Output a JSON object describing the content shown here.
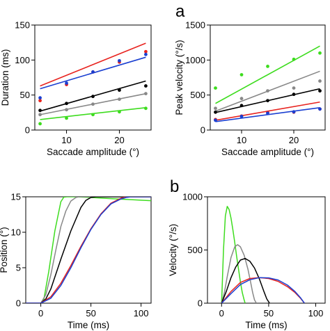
{
  "panel_labels": {
    "a": "a",
    "b": "b"
  },
  "series_colors": {
    "red": "#e8231f",
    "blue": "#1a3fd1",
    "black": "#000000",
    "gray": "#888888",
    "green": "#3ddc1e"
  },
  "chart_data": [
    {
      "id": "duration",
      "type": "scatter",
      "xlabel": "Saccade amplitude (°)",
      "ylabel": "Duration (ms)",
      "xlim": [
        4,
        26
      ],
      "ylim": [
        0,
        150
      ],
      "xticks": [
        10,
        20
      ],
      "yticks": [
        0,
        50,
        100,
        150
      ],
      "grid": false,
      "series": [
        {
          "color": "red",
          "points": [
            [
              5,
              42
            ],
            [
              10,
              65
            ],
            [
              15,
              83
            ],
            [
              20,
              97
            ],
            [
              25,
              112
            ]
          ],
          "fit": [
            [
              5,
              63
            ],
            [
              25,
              124
            ]
          ]
        },
        {
          "color": "blue",
          "points": [
            [
              5,
              46
            ],
            [
              10,
              67
            ],
            [
              15,
              83
            ],
            [
              20,
              99
            ],
            [
              25,
              108
            ]
          ],
          "fit": [
            [
              5,
              59
            ],
            [
              25,
              104
            ]
          ]
        },
        {
          "color": "black",
          "points": [
            [
              5,
              28
            ],
            [
              10,
              38
            ],
            [
              15,
              48
            ],
            [
              20,
              57
            ],
            [
              25,
              63
            ]
          ],
          "fit": [
            [
              5,
              27
            ],
            [
              25,
              70
            ]
          ]
        },
        {
          "color": "gray",
          "points": [
            [
              5,
              22
            ],
            [
              10,
              29
            ],
            [
              15,
              37
            ],
            [
              20,
              44
            ],
            [
              25,
              52
            ]
          ],
          "fit": [
            [
              5,
              22
            ],
            [
              25,
              52
            ]
          ]
        },
        {
          "color": "green",
          "points": [
            [
              5,
              9
            ],
            [
              10,
              17
            ],
            [
              15,
              22
            ],
            [
              20,
              26
            ],
            [
              25,
              31
            ]
          ],
          "fit": [
            [
              5,
              15
            ],
            [
              25,
              32
            ]
          ]
        }
      ]
    },
    {
      "id": "peak_velocity",
      "type": "scatter",
      "xlabel": "Saccade amplitude (°)",
      "ylabel": "Peak velocity (°/s)",
      "xlim": [
        4,
        26
      ],
      "ylim": [
        0,
        1500
      ],
      "xticks": [
        10,
        20
      ],
      "yticks": [
        0,
        500,
        1000,
        1500
      ],
      "grid": false,
      "series": [
        {
          "color": "green",
          "points": [
            [
              5,
              600
            ],
            [
              10,
              790
            ],
            [
              15,
              910
            ],
            [
              20,
              1010
            ],
            [
              25,
              1100
            ]
          ],
          "fit": [
            [
              5,
              380
            ],
            [
              25,
              1200
            ]
          ]
        },
        {
          "color": "gray",
          "points": [
            [
              5,
              310
            ],
            [
              10,
              450
            ],
            [
              15,
              560
            ],
            [
              20,
              600
            ],
            [
              25,
              700
            ]
          ],
          "fit": [
            [
              5,
              270
            ],
            [
              25,
              840
            ]
          ]
        },
        {
          "color": "black",
          "points": [
            [
              5,
              255
            ],
            [
              10,
              350
            ],
            [
              15,
              420
            ],
            [
              20,
              510
            ],
            [
              25,
              560
            ]
          ],
          "fit": [
            [
              5,
              250
            ],
            [
              25,
              590
            ]
          ]
        },
        {
          "color": "red",
          "points": [
            [
              5,
              150
            ],
            [
              10,
              200
            ],
            [
              15,
              250
            ],
            [
              20,
              255
            ],
            [
              25,
              300
            ]
          ],
          "fit": [
            [
              5,
              140
            ],
            [
              25,
              400
            ]
          ]
        },
        {
          "color": "blue",
          "points": [
            [
              5,
              140
            ],
            [
              10,
              195
            ],
            [
              15,
              240
            ],
            [
              20,
              260
            ],
            [
              25,
              300
            ]
          ],
          "fit": [
            [
              5,
              120
            ],
            [
              25,
              320
            ]
          ]
        }
      ]
    },
    {
      "id": "position",
      "type": "line",
      "xlabel": "Time (ms)",
      "ylabel": "Position (°)",
      "xlim": [
        -15,
        110
      ],
      "ylim": [
        0,
        15
      ],
      "xticks": [
        0,
        50,
        100
      ],
      "yticks": [
        0,
        5,
        10,
        15
      ],
      "grid": false,
      "series": [
        {
          "color": "green",
          "x": [
            -15,
            0,
            3,
            8,
            14,
            20,
            23,
            26,
            35,
            50,
            70,
            90,
            110
          ],
          "y": [
            0,
            0,
            0.5,
            4.5,
            10.2,
            14.3,
            14.95,
            15.0,
            15.0,
            14.9,
            14.75,
            14.6,
            14.45
          ]
        },
        {
          "color": "gray",
          "x": [
            -15,
            0,
            5,
            10,
            15,
            20,
            25,
            30,
            35,
            38,
            45,
            110
          ],
          "y": [
            0,
            0,
            1.2,
            4.0,
            7.5,
            10.8,
            13.0,
            14.4,
            14.9,
            15.0,
            15.0,
            15.0
          ]
        },
        {
          "color": "black",
          "x": [
            -15,
            0,
            5,
            10,
            20,
            30,
            40,
            45,
            50,
            55,
            110
          ],
          "y": [
            0,
            0,
            0.6,
            2.0,
            6.2,
            10.2,
            13.5,
            14.5,
            14.9,
            15.0,
            15.0
          ]
        },
        {
          "color": "red",
          "x": [
            -15,
            0,
            10,
            20,
            30,
            40,
            50,
            60,
            70,
            80,
            85,
            90,
            110
          ],
          "y": [
            0,
            0,
            0.9,
            2.8,
            5.3,
            8.0,
            10.5,
            12.6,
            14.1,
            14.8,
            15.0,
            15.0,
            15.0
          ]
        },
        {
          "color": "blue",
          "x": [
            -15,
            0,
            10,
            20,
            30,
            40,
            50,
            60,
            70,
            80,
            85,
            90,
            110
          ],
          "y": [
            0,
            0,
            0.7,
            2.5,
            5.0,
            7.8,
            10.4,
            12.5,
            14.0,
            14.7,
            14.9,
            15.0,
            15.0
          ]
        }
      ]
    },
    {
      "id": "velocity",
      "type": "line",
      "xlabel": "Time (ms)",
      "ylabel": "Velocity (°/s)",
      "xlim": [
        -15,
        110
      ],
      "ylim": [
        0,
        1000
      ],
      "xticks": [
        0,
        50,
        100
      ],
      "yticks": [
        0,
        500,
        1000
      ],
      "grid": false,
      "series": [
        {
          "color": "green",
          "x": [
            0,
            2,
            4,
            6,
            8,
            10,
            12,
            14,
            16,
            18,
            20,
            22,
            24,
            25
          ],
          "y": [
            0,
            500,
            820,
            910,
            880,
            800,
            690,
            570,
            440,
            320,
            200,
            100,
            30,
            0
          ]
        },
        {
          "color": "gray",
          "x": [
            0,
            3,
            6,
            10,
            14,
            17,
            20,
            24,
            28,
            31,
            33,
            35,
            37
          ],
          "y": [
            0,
            100,
            250,
            430,
            530,
            550,
            530,
            450,
            320,
            190,
            100,
            30,
            0
          ]
        },
        {
          "color": "black",
          "x": [
            0,
            5,
            10,
            15,
            20,
            25,
            30,
            35,
            40,
            45,
            48,
            51
          ],
          "y": [
            0,
            110,
            240,
            340,
            405,
            420,
            395,
            330,
            230,
            110,
            40,
            0
          ]
        },
        {
          "color": "red",
          "x": [
            0,
            10,
            20,
            30,
            40,
            50,
            60,
            70,
            78,
            84,
            88
          ],
          "y": [
            0,
            110,
            195,
            232,
            240,
            232,
            205,
            155,
            100,
            45,
            0
          ]
        },
        {
          "color": "blue",
          "x": [
            0,
            10,
            20,
            30,
            40,
            50,
            60,
            70,
            78,
            84,
            88
          ],
          "y": [
            0,
            90,
            175,
            220,
            240,
            238,
            218,
            170,
            110,
            50,
            0
          ]
        }
      ]
    }
  ]
}
